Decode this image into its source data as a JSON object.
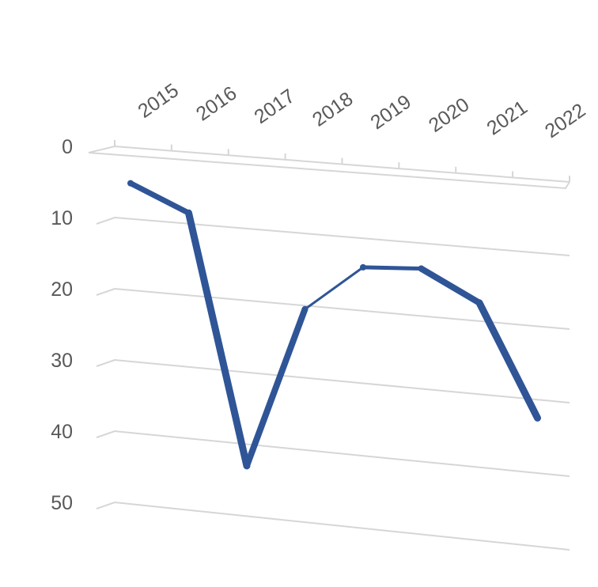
{
  "chart_data": {
    "type": "line",
    "categories": [
      "2015",
      "2016",
      "2017",
      "2018",
      "2019",
      "2020",
      "2021",
      "2022"
    ],
    "series": [
      {
        "values": [
          5,
          8.5,
          43,
          20.5,
          14,
          13.5,
          17.5,
          32.5
        ],
        "color": "#2f5597"
      }
    ],
    "ylim": [
      0,
      50
    ],
    "yticks": [
      0,
      10,
      20,
      30,
      40,
      50
    ],
    "y_axis_reversed": true,
    "x_axis_position": "top",
    "x_tick_rotation": "diagonal",
    "grid": true,
    "legend": "none",
    "style": "3d-perspective",
    "title": "",
    "xlabel": "",
    "ylabel": ""
  }
}
